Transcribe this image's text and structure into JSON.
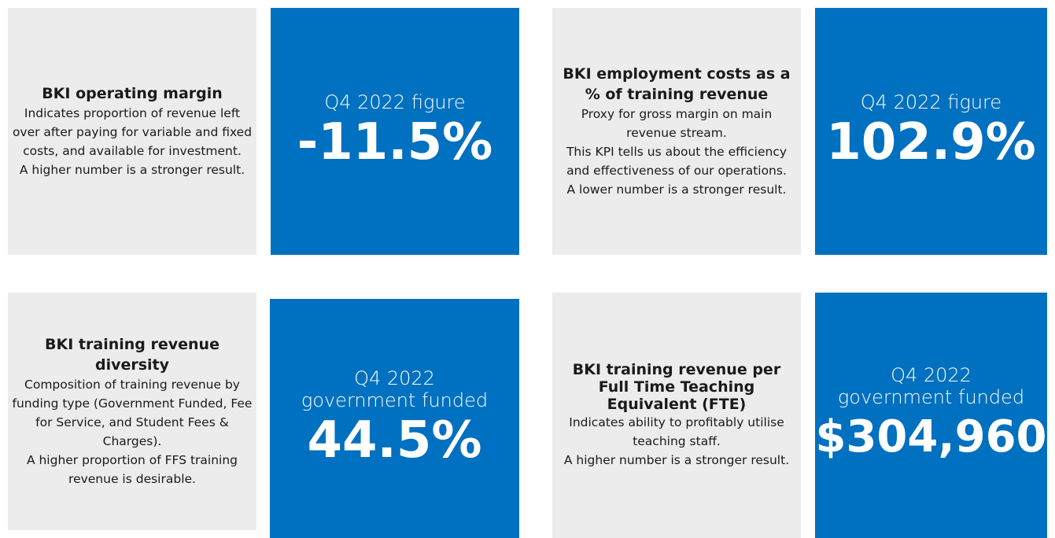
{
  "cards": [
    {
      "title": "BKI operating margin",
      "description": [
        "Indicates proportion of revenue left over after paying for variable and fixed costs, and available for investment.",
        "A higher number is a stronger result."
      ],
      "label": [
        "Q4 2022 figure"
      ],
      "value": "-11.5%"
    },
    {
      "title": "BKI employment costs as a % of training revenue",
      "description": [
        "Proxy for gross margin on main revenue stream.",
        "This KPI tells us about the efficiency and effectiveness of our operations.",
        "A lower number is a stronger result."
      ],
      "label": [
        "Q4 2022 figure"
      ],
      "value": "102.9%"
    },
    {
      "title": "BKI training revenue diversity",
      "description": [
        "Composition of training revenue by funding type (Government Funded, Fee for Service, and Student Fees & Charges).",
        "A higher proportion of FFS training revenue is desirable."
      ],
      "label": [
        "Q4 2022",
        "government funded"
      ],
      "value": "44.5%"
    },
    {
      "title": "BKI training revenue per Full Time Teaching Equivalent (FTE)",
      "description": [
        "Indicates ability to profitably utilise teaching staff.",
        "A higher number is a stronger result."
      ],
      "label": [
        "Q4 2022",
        "government funded"
      ],
      "value": "$304,960"
    }
  ]
}
